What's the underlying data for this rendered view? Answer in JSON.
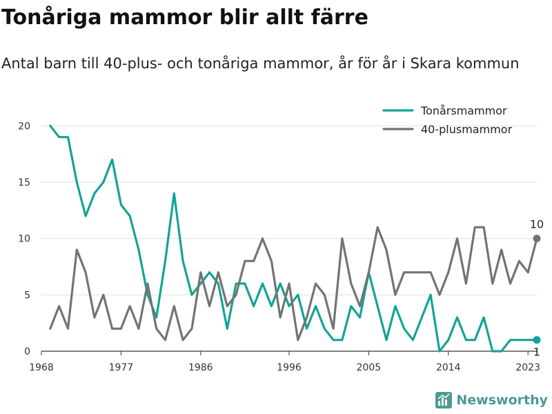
{
  "header": {
    "title": "Tonåriga mammor blir allt färre",
    "subtitle": "Antal barn till 40-plus- och tonåriga mammor, år för år i Skara kommun"
  },
  "brand": {
    "name": "Newsworthy",
    "icon": "bar-chart-logo-icon",
    "color": "#4a9a94"
  },
  "chart_data": {
    "type": "line",
    "title": "Tonåriga mammor blir allt färre",
    "subtitle": "Antal barn till 40-plus- och tonåriga mammor, år för år i Skara kommun",
    "xlabel": "",
    "ylabel": "",
    "xlim": [
      1968,
      2024
    ],
    "ylim": [
      0,
      21
    ],
    "x_ticks": [
      "1968",
      "1977",
      "1986",
      "1996",
      "2005",
      "2014",
      "2023"
    ],
    "y_ticks": [
      "0",
      "5",
      "10",
      "15",
      "20"
    ],
    "grid": true,
    "legend_position": "top-right",
    "x": [
      1969,
      1970,
      1971,
      1972,
      1973,
      1974,
      1975,
      1976,
      1977,
      1978,
      1979,
      1980,
      1981,
      1982,
      1983,
      1984,
      1985,
      1986,
      1987,
      1988,
      1989,
      1990,
      1991,
      1992,
      1993,
      1994,
      1995,
      1996,
      1997,
      1998,
      1999,
      2000,
      2001,
      2002,
      2003,
      2004,
      2005,
      2006,
      2007,
      2008,
      2009,
      2010,
      2011,
      2012,
      2013,
      2014,
      2015,
      2016,
      2017,
      2018,
      2019,
      2020,
      2021,
      2022,
      2023,
      2024
    ],
    "series": [
      {
        "name": "Tonårsmammor",
        "color": "#13a396",
        "values": [
          20,
          19,
          19,
          15,
          12,
          14,
          15,
          17,
          13,
          12,
          9,
          5,
          3,
          8,
          14,
          8,
          5,
          6,
          7,
          6,
          2,
          6,
          6,
          4,
          6,
          4,
          6,
          4,
          5,
          2,
          4,
          2,
          1,
          1,
          4,
          3,
          7,
          4,
          1,
          4,
          2,
          1,
          3,
          5,
          0,
          1,
          3,
          1,
          1,
          3,
          0,
          0,
          1,
          1,
          1,
          1
        ],
        "end_label": "1"
      },
      {
        "name": "40-plusmammor",
        "color": "#737373",
        "values": [
          2,
          4,
          2,
          9,
          7,
          3,
          5,
          2,
          2,
          4,
          2,
          6,
          2,
          1,
          4,
          1,
          2,
          7,
          4,
          7,
          4,
          5,
          8,
          8,
          10,
          8,
          3,
          6,
          1,
          3,
          6,
          5,
          2,
          10,
          6,
          4,
          7,
          11,
          9,
          5,
          7,
          7,
          7,
          7,
          5,
          7,
          10,
          6,
          11,
          11,
          6,
          9,
          6,
          8,
          7,
          10
        ],
        "end_label": "10"
      }
    ]
  }
}
